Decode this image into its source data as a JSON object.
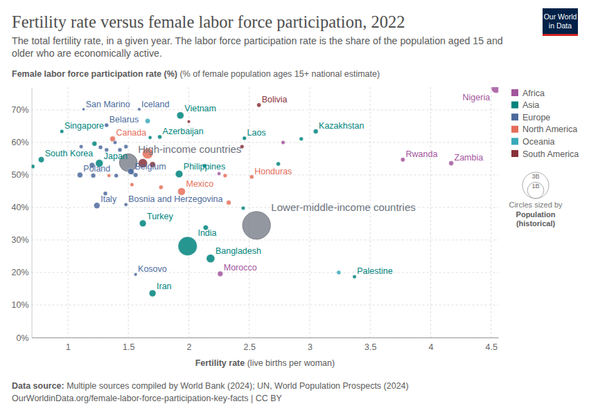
{
  "chart_data": {
    "type": "scatter",
    "title": "Fertility rate versus female labor force participation, 2022",
    "subtitle": [
      "The total fertility rate, in a given year. The labor force participation rate is the share of the population aged 15 and",
      "older who are economically active."
    ],
    "ylabel": "Female labor force participation rate (%)",
    "ylabel_note": "(% of female population ages 15+ national estimate)",
    "xlabel": "Fertility rate",
    "xlabel_note": "(live births per woman)",
    "source_label": "Data source:",
    "source": "Multiple sources compiled by World Bank (2024); UN, World Population Prospects (2024)",
    "url": "OurWorldinData.org/female-labor-force-participation-key-facts | CC BY",
    "logo": [
      "Our World",
      "in Data"
    ],
    "xlim": [
      0.7,
      4.56
    ],
    "xticks": [
      1,
      1.5,
      2,
      2.5,
      3,
      3.5,
      4,
      4.5
    ],
    "ylim": [
      0,
      77
    ],
    "yticks": [
      {
        "value": 0,
        "label": "0%"
      },
      {
        "value": 10,
        "label": "10%"
      },
      {
        "value": 20,
        "label": "20%"
      },
      {
        "value": 30,
        "label": "30%"
      },
      {
        "value": 40,
        "label": "40%"
      },
      {
        "value": 50,
        "label": "50%"
      },
      {
        "value": 60,
        "label": "60%"
      },
      {
        "value": 70,
        "label": "70%"
      }
    ],
    "grid": true,
    "legend": "right",
    "series": [
      {
        "name": "Africa",
        "color": "#a2559c",
        "x": [
          4.54,
          3.77,
          4.17,
          2.26,
          2.78,
          2.25
        ],
        "values": [
          76.6,
          54.7,
          53.6,
          19.6,
          60.0,
          50.4
        ],
        "size": [
          218000000,
          14000000,
          20000000,
          37000000,
          6000000,
          3000000
        ],
        "labels": [
          "Nigeria",
          "Rwanda",
          "Zambia",
          "Morocco",
          null,
          null
        ]
      },
      {
        "name": "Asia",
        "color": "#00847e",
        "x": [
          1.93,
          0.95,
          1.76,
          2.46,
          3.05,
          0.78,
          1.26,
          1.92,
          1.62,
          1.99,
          2.18,
          3.37,
          1.7,
          0.71,
          1.22,
          1.68,
          2.13,
          2.45,
          2.14,
          2.93,
          2.74
        ],
        "values": [
          68.3,
          63.4,
          61.7,
          61.3,
          63.4,
          54.7,
          53.6,
          50.3,
          35.1,
          28.1,
          24.3,
          18.7,
          13.6,
          52.6,
          59.6,
          61.5,
          52.8,
          39.8,
          33.8,
          61.1,
          53.4
        ],
        "size": [
          98000000,
          5600000,
          10000000,
          7500000,
          19600000,
          51700000,
          125000000,
          115000000,
          85000000,
          1425000000,
          171000000,
          5000000,
          89000000,
          7400000,
          23000000,
          3000000,
          10000000,
          5000000,
          30000000,
          7000000,
          10000000
        ],
        "labels": [
          "Vietnam",
          "Singapore",
          "Azerbaijan",
          "Laos",
          "Kazakhstan",
          "South Korea",
          "Japan",
          "Philippines",
          "Turkey",
          "India",
          "Bangladesh",
          "Palestine",
          "Iran",
          null,
          null,
          null,
          null,
          null,
          null,
          null,
          null
        ]
      },
      {
        "name": "Europe",
        "color": "#4c6a9c",
        "x": [
          1.59,
          1.13,
          1.32,
          1.1,
          1.53,
          1.24,
          1.48,
          1.56,
          1.11,
          1.27,
          1.32,
          1.39,
          1.43,
          1.2,
          1.4,
          1.52,
          1.56,
          1.31,
          1.21,
          1.48
        ],
        "values": [
          70.2,
          70.2,
          65.3,
          50.0,
          50.8,
          40.6,
          40.9,
          19.4,
          58.7,
          58.5,
          57.7,
          60.0,
          57.7,
          53.0,
          49.8,
          51.1,
          50.0,
          44.3,
          49.8,
          58.7
        ],
        "size": [
          380000,
          34000,
          9500000,
          39000000,
          11600000,
          59000000,
          3200000,
          1700000,
          5000000,
          10000000,
          8000000,
          5000000,
          10000000,
          38000000,
          10000000,
          67000000,
          17000000,
          10000000,
          19000000,
          9000000
        ],
        "labels": [
          "Iceland",
          "San Marino",
          "Belarus",
          "Poland",
          "Belgium",
          "Italy",
          "Bosnia and Herzegovina",
          "Kosovo",
          null,
          null,
          null,
          null,
          null,
          null,
          null,
          null,
          null,
          null,
          null,
          null
        ]
      },
      {
        "name": "North America",
        "color": "#e56e5a",
        "x": [
          1.37,
          1.94,
          2.52,
          1.66,
          1.53,
          1.77,
          2.33,
          2.3,
          1.34
        ],
        "values": [
          61.1,
          44.9,
          49.4,
          56.6,
          47.0,
          46.2,
          41.5,
          49.8,
          49.8
        ],
        "size": [
          38000000,
          127000000,
          10000000,
          333000000,
          5000000,
          11000000,
          17000000,
          6000000,
          3000000
        ],
        "labels": [
          "Canada",
          "Mexico",
          "Honduras",
          null,
          null,
          null,
          null,
          null,
          null
        ]
      },
      {
        "name": "Oceania",
        "color": "#38aaba",
        "x": [
          1.66,
          3.24
        ],
        "values": [
          66.6,
          20.0
        ],
        "size": [
          26000000,
          10000000
        ],
        "labels": [
          null,
          null
        ]
      },
      {
        "name": "South America",
        "color": "#883039",
        "x": [
          2.58,
          2.0,
          2.44,
          1.7,
          1.62
        ],
        "values": [
          71.5,
          66.4,
          58.7,
          53.2,
          53.6
        ],
        "size": [
          12000000,
          1000000,
          7000000,
          50000000,
          215000000
        ],
        "labels": [
          "Bolivia",
          null,
          null,
          null,
          null
        ]
      }
    ],
    "aggregates": {
      "color": "#6d7480",
      "labels": [
        "High-income countries",
        "Lower-middle-income countries"
      ],
      "x": [
        1.5,
        2.56
      ],
      "values": [
        53.8,
        34.5
      ],
      "size": [
        1240000000,
        3430000000
      ]
    },
    "size_legend": {
      "title": "Circles sized by",
      "measure": "Population",
      "note": "(historical)",
      "values": [
        3000000000,
        1000000000
      ],
      "labels": [
        "3B",
        "1B"
      ]
    }
  }
}
